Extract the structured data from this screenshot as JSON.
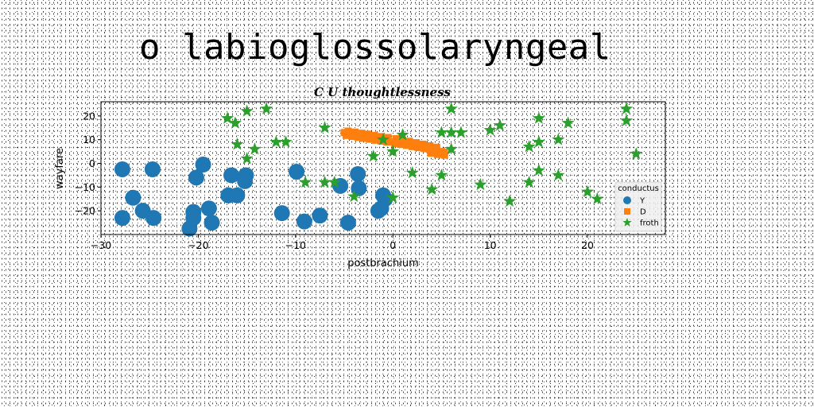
{
  "page": {
    "title": "o labioglossolaryngeal"
  },
  "chart_data": {
    "type": "scatter",
    "title": "C U thoughtlessness",
    "xlabel": "postbrachium",
    "ylabel": "wayfare",
    "xlim": [
      -30,
      28
    ],
    "ylim": [
      -30,
      26
    ],
    "xticks": [
      -30,
      -20,
      -10,
      0,
      10,
      20
    ],
    "yticks": [
      -20,
      -10,
      0,
      10,
      20
    ],
    "grid": false,
    "legend": {
      "title": "conductus",
      "placement": "lower-right"
    },
    "series": [
      {
        "name": "Y",
        "marker": "circle",
        "color": "#1f77b4",
        "points": [
          [
            -27.8,
            -2.5
          ],
          [
            -27.8,
            -23
          ],
          [
            -26.7,
            -14.5
          ],
          [
            -25.7,
            -20
          ],
          [
            -24.7,
            -2.5
          ],
          [
            -24.6,
            -23
          ],
          [
            -20.9,
            -27.5
          ],
          [
            -20.5,
            -20.5
          ],
          [
            -20.5,
            -23
          ],
          [
            -20.2,
            -6
          ],
          [
            -19.5,
            -0.5
          ],
          [
            -18.9,
            -19
          ],
          [
            -18.6,
            -25
          ],
          [
            -16.9,
            -13.5
          ],
          [
            -16.6,
            -5
          ],
          [
            -16,
            -13.5
          ],
          [
            -15.2,
            -7.5
          ],
          [
            -15.1,
            -5
          ],
          [
            -11.4,
            -21
          ],
          [
            -9.9,
            -3.5
          ],
          [
            -9.1,
            -24.5
          ],
          [
            -7.5,
            -22
          ],
          [
            -5.4,
            -9.5
          ],
          [
            -4.6,
            -25
          ],
          [
            -3.6,
            -4.5
          ],
          [
            -3.5,
            -10.5
          ],
          [
            -1.5,
            -20
          ],
          [
            -1.2,
            -19
          ],
          [
            -1,
            -13.5
          ],
          [
            -0.8,
            -15
          ]
        ]
      },
      {
        "name": "D",
        "marker": "square",
        "color": "#ff7f0e",
        "points": [
          [
            -5,
            13
          ],
          [
            -4.5,
            12.6
          ],
          [
            -4,
            12.2
          ],
          [
            -3.5,
            11.8
          ],
          [
            -3,
            11.4
          ],
          [
            -2.5,
            11
          ],
          [
            -2,
            10.6
          ],
          [
            -1.5,
            10.2
          ],
          [
            -1,
            9.8
          ],
          [
            -0.5,
            9.4
          ],
          [
            0,
            9
          ],
          [
            0.5,
            8.6
          ],
          [
            1,
            8.2
          ],
          [
            1.5,
            7.8
          ],
          [
            2,
            7.4
          ],
          [
            2.5,
            7
          ],
          [
            3,
            6.6
          ],
          [
            3.5,
            6.2
          ],
          [
            4,
            5.8
          ],
          [
            4.5,
            5.4
          ],
          [
            5,
            5
          ],
          [
            5.3,
            4.7
          ],
          [
            -4.8,
            11.8
          ],
          [
            -4.2,
            11.4
          ],
          [
            -3.6,
            11
          ],
          [
            -3,
            10.6
          ],
          [
            -2.4,
            10.2
          ],
          [
            -1.8,
            9.8
          ],
          [
            -1.2,
            9.4
          ],
          [
            -0.6,
            9
          ],
          [
            0.2,
            8.4
          ],
          [
            0.8,
            8
          ],
          [
            1.4,
            7.6
          ],
          [
            2,
            7.1
          ],
          [
            2.6,
            6.7
          ],
          [
            3.2,
            6.3
          ],
          [
            3.8,
            5.9
          ],
          [
            4.4,
            5.5
          ],
          [
            5,
            4.6
          ],
          [
            5.3,
            3.5
          ],
          [
            4.6,
            3.8
          ],
          [
            3.9,
            4.3
          ],
          [
            -4.6,
            13.6
          ],
          [
            -3.9,
            13.2
          ],
          [
            -3.2,
            12.7
          ],
          [
            -2.6,
            12.3
          ],
          [
            -1.9,
            11.8
          ],
          [
            -1.2,
            11.3
          ],
          [
            -0.5,
            10.9
          ],
          [
            0.3,
            10.4
          ],
          [
            1,
            9.8
          ],
          [
            1.7,
            9.3
          ],
          [
            2.4,
            8.7
          ],
          [
            3.1,
            8.1
          ],
          [
            3.8,
            7.4
          ],
          [
            4.5,
            6.8
          ]
        ]
      },
      {
        "name": "froth",
        "marker": "star",
        "color": "#2ca02c",
        "points": [
          [
            -17,
            19
          ],
          [
            -16.2,
            17
          ],
          [
            -16,
            8
          ],
          [
            -15,
            22
          ],
          [
            -15,
            2
          ],
          [
            -14.2,
            6
          ],
          [
            -13,
            23
          ],
          [
            -12,
            9
          ],
          [
            -11,
            9
          ],
          [
            -9,
            -8
          ],
          [
            -7,
            15
          ],
          [
            -7,
            -8
          ],
          [
            -6,
            -8
          ],
          [
            -4,
            -14
          ],
          [
            -2,
            3
          ],
          [
            -1,
            10
          ],
          [
            0,
            5
          ],
          [
            0,
            -14.5
          ],
          [
            1,
            12
          ],
          [
            2,
            -4
          ],
          [
            4,
            -11
          ],
          [
            5,
            13
          ],
          [
            5,
            -5
          ],
          [
            6,
            23
          ],
          [
            6,
            13
          ],
          [
            6,
            6
          ],
          [
            7,
            13
          ],
          [
            9,
            -9
          ],
          [
            10,
            14
          ],
          [
            11,
            16
          ],
          [
            12,
            -16
          ],
          [
            14,
            7
          ],
          [
            14,
            -8
          ],
          [
            15,
            19
          ],
          [
            15,
            9
          ],
          [
            15,
            -3
          ],
          [
            17,
            10
          ],
          [
            17,
            -5
          ],
          [
            18,
            17
          ],
          [
            20,
            -12
          ],
          [
            21,
            -15
          ],
          [
            24,
            23
          ],
          [
            24,
            18
          ],
          [
            25,
            4
          ]
        ]
      }
    ]
  }
}
